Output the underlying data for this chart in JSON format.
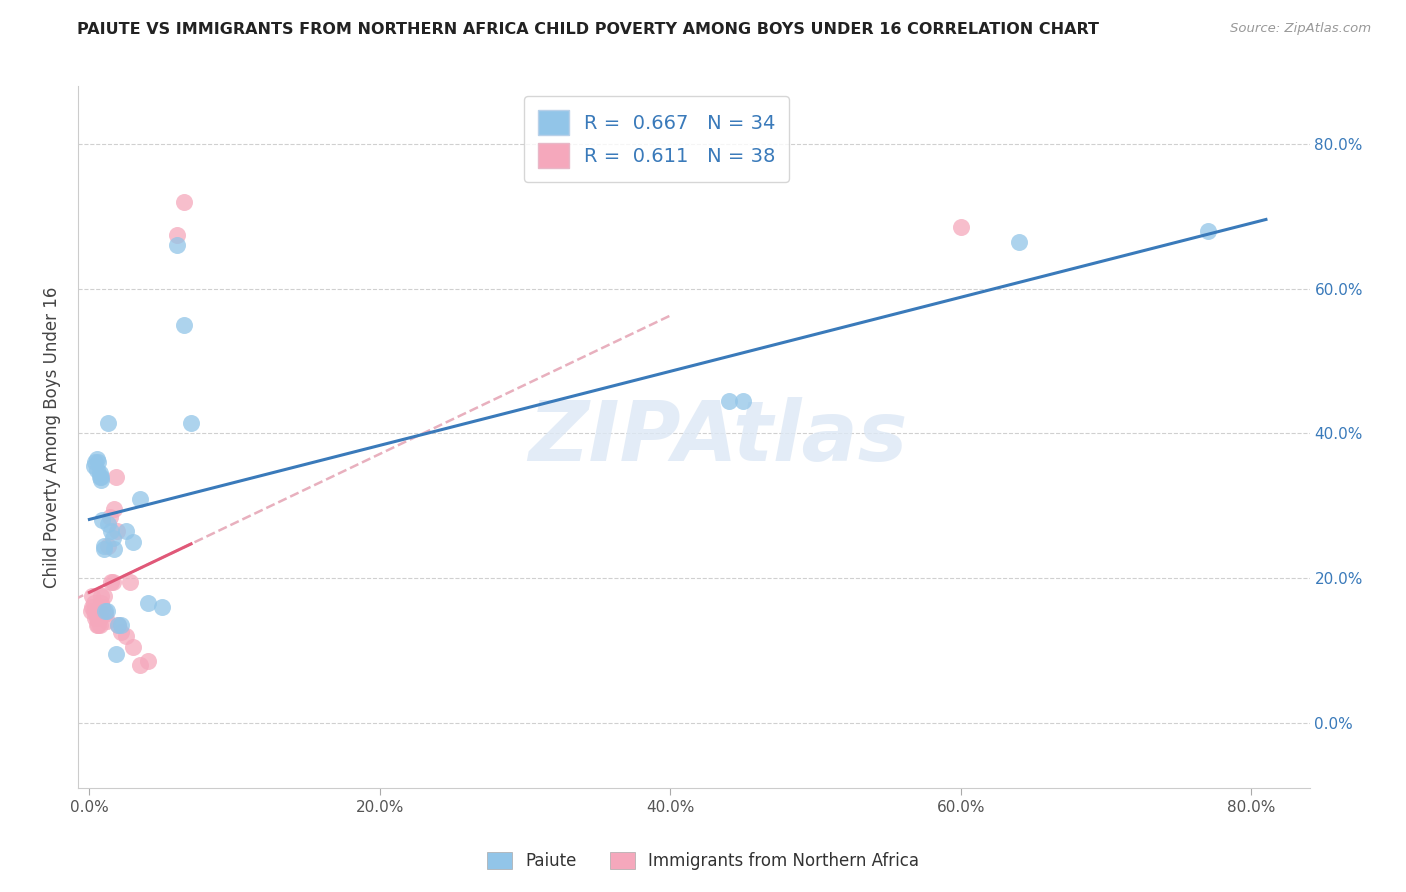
{
  "title": "PAIUTE VS IMMIGRANTS FROM NORTHERN AFRICA CHILD POVERTY AMONG BOYS UNDER 16 CORRELATION CHART",
  "source": "Source: ZipAtlas.com",
  "ylabel": "Child Poverty Among Boys Under 16",
  "watermark": "ZIPAtlas",
  "legend1_label": "Paiute",
  "legend2_label": "Immigrants from Northern Africa",
  "r1": 0.667,
  "n1": 34,
  "r2": 0.611,
  "n2": 38,
  "xlim": [
    -0.008,
    0.84
  ],
  "ylim": [
    -0.09,
    0.88
  ],
  "xticks": [
    0.0,
    0.2,
    0.4,
    0.6,
    0.8
  ],
  "xticklabels": [
    "0.0%",
    "20.0%",
    "40.0%",
    "60.0%",
    "80.0%"
  ],
  "yticks": [
    0.0,
    0.2,
    0.4,
    0.6,
    0.8
  ],
  "yticklabels": [
    "0.0%",
    "20.0%",
    "40.0%",
    "60.0%",
    "80.0%"
  ],
  "color_blue": "#92c5e8",
  "color_pink": "#f5a8bc",
  "line_blue": "#3a7aba",
  "line_pink": "#e05878",
  "line_pink_dashed_color": "#e8b0be",
  "paiute_x": [
    0.003,
    0.004,
    0.005,
    0.005,
    0.006,
    0.007,
    0.007,
    0.008,
    0.008,
    0.009,
    0.01,
    0.01,
    0.011,
    0.012,
    0.013,
    0.013,
    0.015,
    0.016,
    0.017,
    0.018,
    0.02,
    0.022,
    0.025,
    0.03,
    0.035,
    0.04,
    0.05,
    0.06,
    0.065,
    0.07,
    0.44,
    0.45,
    0.64,
    0.77
  ],
  "paiute_y": [
    0.355,
    0.36,
    0.365,
    0.35,
    0.36,
    0.34,
    0.345,
    0.34,
    0.335,
    0.28,
    0.24,
    0.245,
    0.155,
    0.155,
    0.415,
    0.275,
    0.265,
    0.255,
    0.24,
    0.095,
    0.135,
    0.135,
    0.265,
    0.25,
    0.31,
    0.165,
    0.16,
    0.66,
    0.55,
    0.415,
    0.445,
    0.445,
    0.665,
    0.68
  ],
  "immig_x": [
    0.001,
    0.002,
    0.002,
    0.003,
    0.003,
    0.004,
    0.004,
    0.005,
    0.005,
    0.006,
    0.006,
    0.006,
    0.007,
    0.007,
    0.008,
    0.008,
    0.009,
    0.009,
    0.01,
    0.011,
    0.012,
    0.013,
    0.014,
    0.015,
    0.016,
    0.017,
    0.018,
    0.019,
    0.02,
    0.022,
    0.025,
    0.028,
    0.03,
    0.035,
    0.04,
    0.06,
    0.065,
    0.6
  ],
  "immig_y": [
    0.155,
    0.16,
    0.175,
    0.155,
    0.165,
    0.145,
    0.155,
    0.135,
    0.145,
    0.135,
    0.145,
    0.155,
    0.135,
    0.145,
    0.165,
    0.175,
    0.15,
    0.16,
    0.175,
    0.15,
    0.14,
    0.245,
    0.285,
    0.195,
    0.195,
    0.295,
    0.34,
    0.265,
    0.135,
    0.125,
    0.12,
    0.195,
    0.105,
    0.08,
    0.085,
    0.675,
    0.72,
    0.685
  ]
}
